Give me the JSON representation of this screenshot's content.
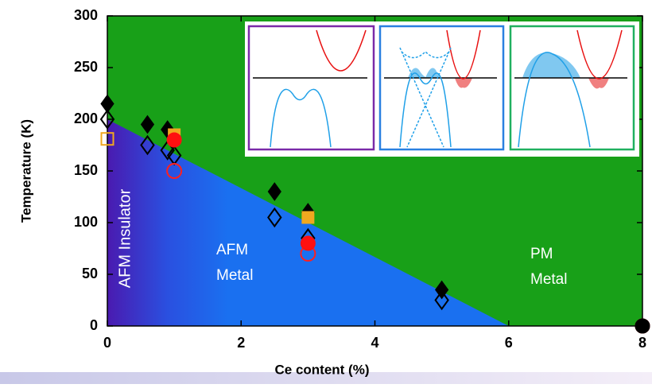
{
  "chart_data": {
    "type": "scatter",
    "xlabel": "Ce content (%)",
    "ylabel": "Temperature (K)",
    "xlim": [
      0,
      8
    ],
    "xticks": [
      0,
      2,
      4,
      6,
      8
    ],
    "ylim": [
      0,
      300
    ],
    "yticks": [
      0,
      50,
      100,
      150,
      200,
      250,
      300
    ],
    "regions": [
      {
        "label": [
          "AFM Insulator"
        ]
      },
      {
        "label": [
          "AFM",
          "Metal"
        ]
      },
      {
        "label": [
          "PM",
          "Metal"
        ]
      }
    ],
    "phase_boundary": {
      "x": [
        0,
        6
      ],
      "y": [
        200,
        0
      ]
    },
    "series": [
      {
        "marker": "diamond",
        "filled": true,
        "color": "#000000",
        "x": [
          0,
          0.6,
          0.9,
          2.5,
          3,
          5
        ],
        "y": [
          215,
          195,
          190,
          130,
          110,
          35
        ]
      },
      {
        "marker": "diamond",
        "filled": false,
        "color": "#000000",
        "x": [
          0,
          0.6,
          0.9,
          1,
          2.5,
          3,
          5
        ],
        "y": [
          200,
          175,
          170,
          165,
          105,
          85,
          25
        ]
      },
      {
        "marker": "square",
        "filled": false,
        "color": "#f0a820",
        "x": [
          0
        ],
        "y": [
          181
        ]
      },
      {
        "marker": "square",
        "filled": true,
        "color": "#f0a820",
        "x": [
          1,
          3
        ],
        "y": [
          185,
          105
        ]
      },
      {
        "marker": "circle",
        "filled": false,
        "color": "#ff2020",
        "x": [
          1,
          3
        ],
        "y": [
          150,
          70
        ]
      },
      {
        "marker": "circle",
        "filled": true,
        "color": "#ff1010",
        "x": [
          1,
          3,
          8
        ],
        "y": [
          180,
          80,
          0
        ]
      },
      {
        "marker": "circle",
        "filled": true,
        "color": "#000000",
        "x": [
          8
        ],
        "y": [
          0
        ]
      }
    ]
  }
}
